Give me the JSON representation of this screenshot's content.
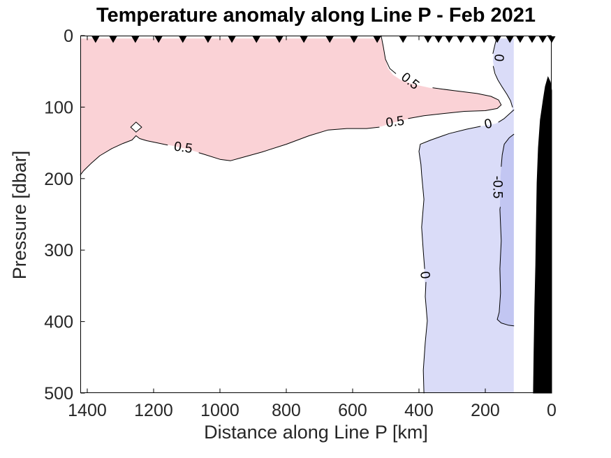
{
  "chart_data": {
    "type": "filled_contour",
    "title": "Temperature anomaly along Line P - Feb 2021",
    "xlabel": "Distance along Line P [km]",
    "ylabel": "Pressure [dbar]",
    "xlim": [
      1421,
      0
    ],
    "ylim": [
      0,
      500
    ],
    "x_ticks": [
      1400,
      1200,
      1000,
      800,
      600,
      400,
      200,
      0
    ],
    "y_ticks": [
      0,
      100,
      200,
      300,
      400,
      500
    ],
    "contour_levels": [
      -0.5,
      0,
      0.5
    ],
    "legend_position": "none",
    "grid": false,
    "colors": {
      "pink": "#fad2d6",
      "blue_light": "#dadcf8",
      "blue_dark": "#c2c6f2",
      "white": "#ffffff",
      "black": "#000000",
      "contour_line": "#000000",
      "axis": "#000000",
      "tick_label": "#262626",
      "station_marker": "#000000"
    },
    "station_markers_km": [
      1375,
      1322,
      1255,
      1185,
      1112,
      1036,
      964,
      890,
      821,
      747,
      669,
      596,
      526,
      448,
      373,
      341,
      309,
      274,
      238,
      204,
      164,
      126,
      95,
      59,
      27,
      0
    ],
    "regions": [
      {
        "name": "positive-anomaly-above-0.5",
        "color_key": "pink",
        "outlined": false,
        "points": [
          [
            1421,
            4
          ],
          [
            514,
            4
          ],
          [
            507,
            17
          ],
          [
            501,
            33
          ],
          [
            493,
            46
          ],
          [
            478,
            55
          ],
          [
            455,
            62
          ],
          [
            417,
            68
          ],
          [
            368,
            73
          ],
          [
            295,
            77
          ],
          [
            225,
            81
          ],
          [
            183,
            85
          ],
          [
            160,
            90
          ],
          [
            152,
            97
          ],
          [
            164,
            102
          ],
          [
            200,
            105
          ],
          [
            263,
            106
          ],
          [
            326,
            109
          ],
          [
            385,
            112
          ],
          [
            436,
            117
          ],
          [
            480,
            122
          ],
          [
            512,
            127
          ],
          [
            558,
            130
          ],
          [
            617,
            130
          ],
          [
            674,
            132
          ],
          [
            731,
            140
          ],
          [
            800,
            152
          ],
          [
            874,
            163
          ],
          [
            937,
            171
          ],
          [
            968,
            175
          ],
          [
            1000,
            173
          ],
          [
            1048,
            166
          ],
          [
            1095,
            159
          ],
          [
            1143,
            154
          ],
          [
            1189,
            150
          ],
          [
            1221,
            147
          ],
          [
            1242,
            144
          ],
          [
            1253,
            140
          ],
          [
            1265,
            146
          ],
          [
            1293,
            151
          ],
          [
            1326,
            158
          ],
          [
            1362,
            168
          ],
          [
            1389,
            179
          ],
          [
            1411,
            189
          ],
          [
            1421,
            195
          ]
        ]
      },
      {
        "name": "closed-0.5-contour-diamond",
        "color_key": "white",
        "outlined": true,
        "points": [
          [
            1253,
            121
          ],
          [
            1236,
            128
          ],
          [
            1253,
            135
          ],
          [
            1269,
            128
          ]
        ]
      },
      {
        "name": "negative-anomaly-below-0",
        "color_key": "blue_light",
        "outlined": false,
        "points": [
          [
            166,
            4
          ],
          [
            114,
            4
          ],
          [
            114,
            500
          ],
          [
            385,
            500
          ],
          [
            387,
            468
          ],
          [
            381,
            429
          ],
          [
            375,
            399
          ],
          [
            381,
            365
          ],
          [
            383,
            337
          ],
          [
            387,
            302
          ],
          [
            392,
            268
          ],
          [
            385,
            229
          ],
          [
            392,
            194
          ],
          [
            400,
            167
          ],
          [
            398,
            154
          ],
          [
            364,
            146
          ],
          [
            309,
            137
          ],
          [
            257,
            131
          ],
          [
            215,
            127
          ],
          [
            168,
            123
          ],
          [
            143,
            116
          ],
          [
            124,
            108
          ],
          [
            118,
            102
          ],
          [
            122,
            93
          ],
          [
            133,
            83
          ],
          [
            149,
            72
          ],
          [
            164,
            60
          ],
          [
            173,
            47
          ],
          [
            177,
            35
          ],
          [
            175,
            22
          ],
          [
            171,
            11
          ]
        ]
      },
      {
        "name": "negative-anomaly-below-neg0.5",
        "color_key": "blue_dark",
        "outlined": false,
        "points": [
          [
            114,
            138
          ],
          [
            128,
            143
          ],
          [
            143,
            152
          ],
          [
            149,
            167
          ],
          [
            152,
            185
          ],
          [
            154,
            196
          ],
          [
            156,
            243
          ],
          [
            152,
            287
          ],
          [
            156,
            326
          ],
          [
            154,
            360
          ],
          [
            158,
            387
          ],
          [
            164,
            397
          ],
          [
            152,
            402
          ],
          [
            131,
            405
          ],
          [
            114,
            406
          ]
        ]
      },
      {
        "name": "bathymetry",
        "color_key": "black",
        "outlined": true,
        "points": [
          [
            11,
            58
          ],
          [
            4,
            65
          ],
          [
            0,
            77
          ],
          [
            0,
            500
          ],
          [
            55,
            500
          ],
          [
            53,
            438
          ],
          [
            51,
            380
          ],
          [
            48,
            321
          ],
          [
            46,
            263
          ],
          [
            44,
            206
          ],
          [
            40,
            157
          ],
          [
            34,
            118
          ],
          [
            25,
            89
          ],
          [
            19,
            71
          ]
        ]
      }
    ],
    "contour_lines": [
      {
        "level": "0.5",
        "segments": [
          [
            [
              1421,
              195
            ],
            [
              1411,
              189
            ],
            [
              1389,
              179
            ],
            [
              1362,
              168
            ],
            [
              1326,
              158
            ],
            [
              1293,
              151
            ],
            [
              1265,
              146
            ],
            [
              1253,
              140
            ],
            [
              1242,
              144
            ],
            [
              1221,
              147
            ],
            [
              1189,
              150
            ],
            [
              1158,
              153
            ]
          ],
          [
            [
              1063,
              164
            ],
            [
              1048,
              166
            ],
            [
              1000,
              173
            ],
            [
              968,
              175
            ],
            [
              937,
              171
            ],
            [
              874,
              163
            ],
            [
              800,
              152
            ],
            [
              731,
              140
            ],
            [
              674,
              132
            ],
            [
              617,
              130
            ],
            [
              558,
              130
            ],
            [
              520,
              128
            ]
          ],
          [
            [
              432,
              116
            ],
            [
              385,
              112
            ],
            [
              326,
              109
            ],
            [
              263,
              106
            ],
            [
              200,
              105
            ],
            [
              164,
              102
            ],
            [
              152,
              97
            ],
            [
              160,
              90
            ],
            [
              183,
              85
            ],
            [
              225,
              81
            ],
            [
              295,
              77
            ],
            [
              358,
              73
            ]
          ],
          [
            [
              470,
              53
            ],
            [
              488,
              46
            ],
            [
              501,
              33
            ],
            [
              507,
              17
            ],
            [
              514,
              0
            ]
          ]
        ]
      },
      {
        "level": "0",
        "segments": [
          [
            [
              164,
              0
            ],
            [
              169,
              9
            ],
            [
              174,
              19
            ],
            [
              177,
              25
            ]
          ],
          [
            [
              176,
              43
            ],
            [
              171,
              53
            ],
            [
              162,
              62
            ],
            [
              149,
              72
            ],
            [
              135,
              82
            ],
            [
              124,
              91
            ],
            [
              118,
              100
            ]
          ],
          [
            [
              114,
              104
            ],
            [
              124,
              108
            ],
            [
              143,
              116
            ],
            [
              160,
              121
            ]
          ],
          [
            [
              215,
              127
            ],
            [
              257,
              131
            ],
            [
              309,
              137
            ],
            [
              364,
              146
            ],
            [
              396,
              152
            ],
            [
              400,
              162
            ],
            [
              394,
              180
            ],
            [
              392,
              194
            ],
            [
              385,
              229
            ],
            [
              392,
              268
            ],
            [
              387,
              302
            ],
            [
              383,
              326
            ]
          ],
          [
            [
              379,
              345
            ],
            [
              381,
              365
            ],
            [
              375,
              399
            ],
            [
              381,
              429
            ],
            [
              387,
              468
            ],
            [
              385,
              500
            ]
          ]
        ]
      },
      {
        "level": "-0.5",
        "segments": [
          [
            [
              114,
              138
            ],
            [
              128,
              143
            ],
            [
              143,
              152
            ],
            [
              149,
              167
            ],
            [
              152,
              183
            ]
          ],
          [
            [
              155,
              240
            ],
            [
              156,
              243
            ],
            [
              152,
              287
            ],
            [
              156,
              326
            ],
            [
              154,
              360
            ],
            [
              158,
              387
            ],
            [
              164,
              397
            ],
            [
              152,
              402
            ],
            [
              131,
              405
            ],
            [
              114,
              406
            ]
          ]
        ]
      }
    ],
    "contour_labels": [
      {
        "text": "0.5",
        "km": 1111,
        "dbar": 157,
        "rot": 8
      },
      {
        "text": "0.5",
        "km": 472,
        "dbar": 121,
        "rot": -8
      },
      {
        "text": "0.5",
        "km": 427,
        "dbar": 64,
        "rot": 38
      },
      {
        "text": "0",
        "km": 160,
        "dbar": 31,
        "rot": 95
      },
      {
        "text": "0",
        "km": 191,
        "dbar": 124,
        "rot": -13
      },
      {
        "text": "0",
        "km": 383,
        "dbar": 335,
        "rot": 84
      },
      {
        "text": "-0.5",
        "km": 164,
        "dbar": 212,
        "rot": 90
      }
    ]
  }
}
